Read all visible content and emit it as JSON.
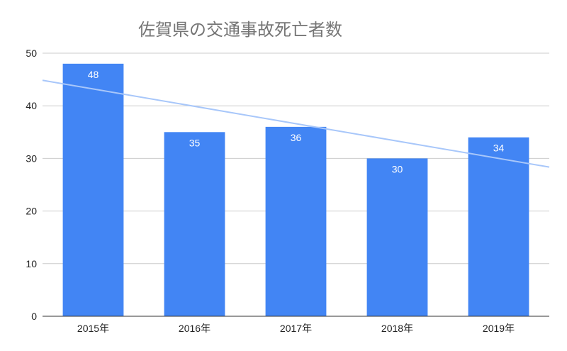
{
  "chart_data": {
    "type": "bar",
    "title": "佐賀県の交通事故死亡者数",
    "categories": [
      "2015年",
      "2016年",
      "2017年",
      "2018年",
      "2019年"
    ],
    "series": [
      {
        "values": [
          48,
          35,
          36,
          30,
          34
        ]
      }
    ],
    "data_labels": [
      "48",
      "35",
      "36",
      "30",
      "34"
    ],
    "trendline": {
      "type": "linear"
    },
    "ylim": [
      0,
      50
    ],
    "yticks": [
      0,
      10,
      20,
      30,
      40,
      50
    ],
    "ytick_labels": [
      "0",
      "10",
      "20",
      "30",
      "40",
      "50"
    ],
    "xlabel": "",
    "ylabel": "",
    "grid": true,
    "colors": {
      "bar": "#4285f4",
      "trendline": "#a8c7fa",
      "grid": "#cccccc",
      "axis": "#333333"
    }
  }
}
